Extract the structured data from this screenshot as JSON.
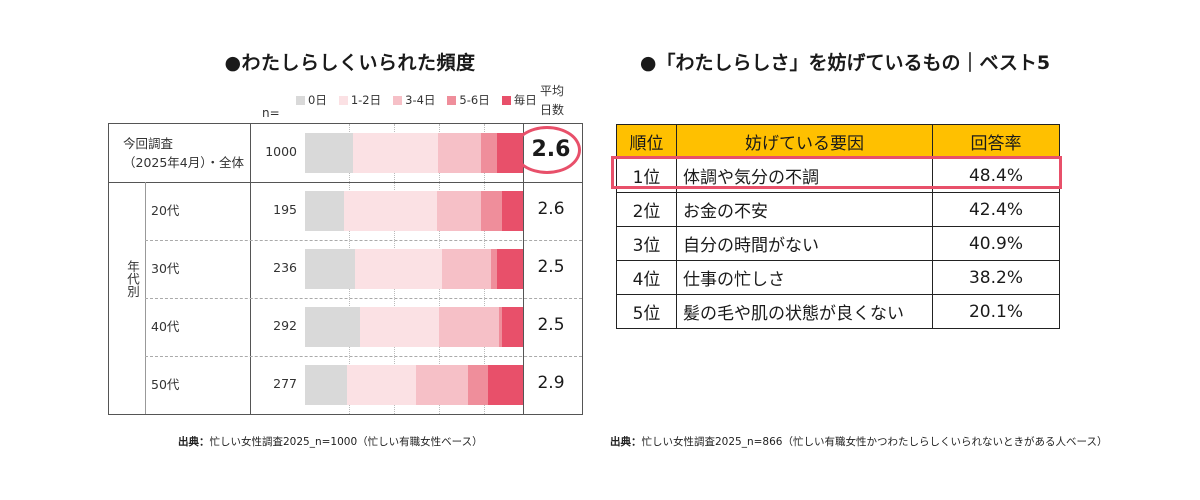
{
  "left": {
    "title": "●わたしらしくいられた頻度",
    "n_header": "n=",
    "avg_header_line1": "平均",
    "avg_header_line2": "日数",
    "group_label": "年代別",
    "source_bold": "出典：",
    "source_text": "忙しい女性調査2025_n=1000（忙しい有職女性ベース）"
  },
  "right": {
    "title": "●「わたしらしさ」を妨げているもの｜ベスト5",
    "headers": [
      "順位",
      "妨げている要因",
      "回答率"
    ],
    "rows": [
      {
        "rank": "1位",
        "factor": "体調や気分の不調",
        "rate": "48.4%"
      },
      {
        "rank": "2位",
        "factor": "お金の不安",
        "rate": "42.4%"
      },
      {
        "rank": "3位",
        "factor": "自分の時間がない",
        "rate": "40.9%"
      },
      {
        "rank": "4位",
        "factor": "仕事の忙しさ",
        "rate": "38.2%"
      },
      {
        "rank": "5位",
        "factor": "髪の毛や肌の状態が良くない",
        "rate": "20.1%"
      }
    ],
    "source_bold": "出典：",
    "source_text": "忙しい女性調査2025_n=866（忙しい有職女性かつわたしらしくいられないときがある人ベース）"
  },
  "chart_data": [
    {
      "type": "bar",
      "stacked": true,
      "orientation": "horizontal",
      "title": "●わたしらしくいられた頻度",
      "legend_position": "top",
      "series": [
        {
          "name": "0日",
          "color": "#d9d9d9",
          "values": [
            17,
            15,
            19,
            21,
            17
          ]
        },
        {
          "name": "1-2日",
          "color": "#fbe1e4",
          "values": [
            30,
            36,
            33,
            30,
            28
          ]
        },
        {
          "name": "3-4日",
          "color": "#f6c0c7",
          "values": [
            15,
            17,
            19,
            23,
            21
          ]
        },
        {
          "name": "5-6日",
          "color": "#ef8e9b",
          "values": [
            6,
            8,
            2,
            1,
            8
          ]
        },
        {
          "name": "毎日",
          "color": "#e8506a",
          "values": [
            9,
            8,
            10,
            8,
            14
          ]
        }
      ],
      "categories": [
        {
          "label": "今回調査\n（2025年4月）・全体",
          "n": "1000",
          "avg": "2.6"
        },
        {
          "label": "20代",
          "n": "195",
          "avg": "2.6"
        },
        {
          "label": "30代",
          "n": "236",
          "avg": "2.5"
        },
        {
          "label": "40代",
          "n": "292",
          "avg": "2.5"
        },
        {
          "label": "50代",
          "n": "277",
          "avg": "2.9"
        }
      ]
    },
    {
      "type": "table",
      "title": "●「わたしらしさ」を妨げているもの｜ベスト5",
      "columns": [
        "順位",
        "妨げている要因",
        "回答率"
      ],
      "rows": [
        [
          "1位",
          "体調や気分の不調",
          "48.4%"
        ],
        [
          "2位",
          "お金の不安",
          "42.4%"
        ],
        [
          "3位",
          "自分の時間がない",
          "40.9%"
        ],
        [
          "4位",
          "仕事の忙しさ",
          "38.2%"
        ],
        [
          "5位",
          "髪の毛や肌の状態が良くない",
          "20.1%"
        ]
      ]
    }
  ]
}
